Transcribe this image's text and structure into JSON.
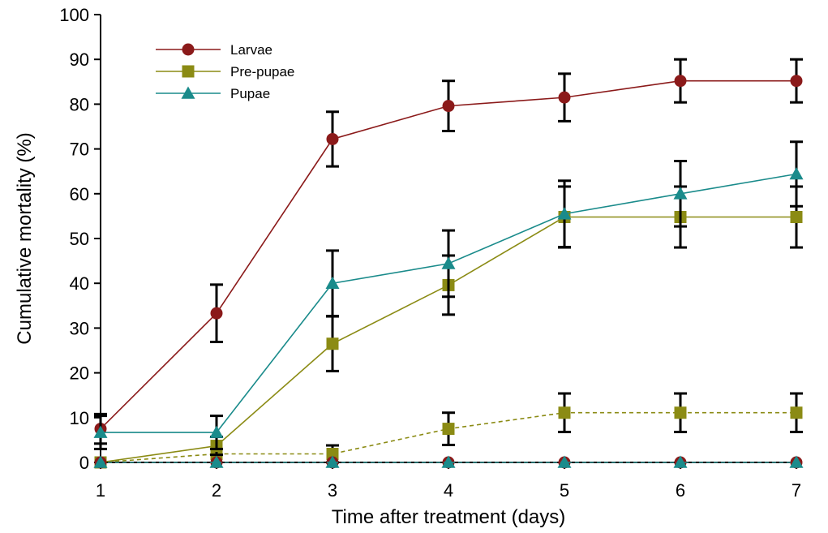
{
  "chart_data": {
    "type": "line",
    "title": "",
    "xlabel": "Time after treatment (days)",
    "ylabel": "Cumulative mortality (%)",
    "x": [
      1,
      2,
      3,
      4,
      5,
      6,
      7
    ],
    "xlim": [
      1,
      7
    ],
    "ylim": [
      0,
      100
    ],
    "yticks": [
      0,
      10,
      20,
      30,
      40,
      50,
      60,
      70,
      80,
      90,
      100
    ],
    "xticks": [
      1,
      2,
      3,
      4,
      5,
      6,
      7
    ],
    "grid": false,
    "legend_position": "top-left",
    "series": [
      {
        "name": "Larvae",
        "marker": "circle",
        "color": "#8b1a1a",
        "dashed": false,
        "values": [
          7.5,
          33.3,
          72.2,
          79.6,
          81.5,
          85.2,
          85.2
        ],
        "errors": [
          3.3,
          6.4,
          6.1,
          5.6,
          5.3,
          4.8,
          4.8
        ]
      },
      {
        "name": "Pre-pupae",
        "marker": "square",
        "color": "#8b8b14",
        "dashed": false,
        "values": [
          0,
          3.7,
          26.5,
          39.6,
          54.8,
          54.8,
          54.8
        ],
        "errors": [
          0,
          2.0,
          6.1,
          6.6,
          6.8,
          6.8,
          6.8
        ]
      },
      {
        "name": "Pupae",
        "marker": "triangle",
        "color": "#1a8b8b",
        "dashed": false,
        "values": [
          6.7,
          6.7,
          40.0,
          44.4,
          55.5,
          60.0,
          64.4
        ],
        "errors": [
          3.7,
          3.7,
          7.3,
          7.4,
          7.4,
          7.3,
          7.2
        ]
      },
      {
        "name": "",
        "marker": "square",
        "color": "#8b8b14",
        "dashed": true,
        "values": [
          0,
          1.9,
          1.9,
          7.5,
          11.1,
          11.1,
          11.1
        ],
        "errors": [
          0,
          0,
          1.9,
          3.6,
          4.3,
          4.3,
          4.3
        ]
      },
      {
        "name": "",
        "marker": "circle",
        "color": "#8b1a1a",
        "dashed": true,
        "values": [
          0,
          0,
          0,
          0,
          0,
          0,
          0
        ],
        "errors": [
          0,
          0,
          0,
          0,
          0,
          0,
          0
        ]
      },
      {
        "name": "",
        "marker": "triangle",
        "color": "#1a8b8b",
        "dashed": true,
        "values": [
          0,
          0,
          0,
          0,
          0,
          0,
          0
        ],
        "errors": [
          0,
          0,
          0,
          0,
          0,
          0,
          0
        ]
      }
    ]
  }
}
